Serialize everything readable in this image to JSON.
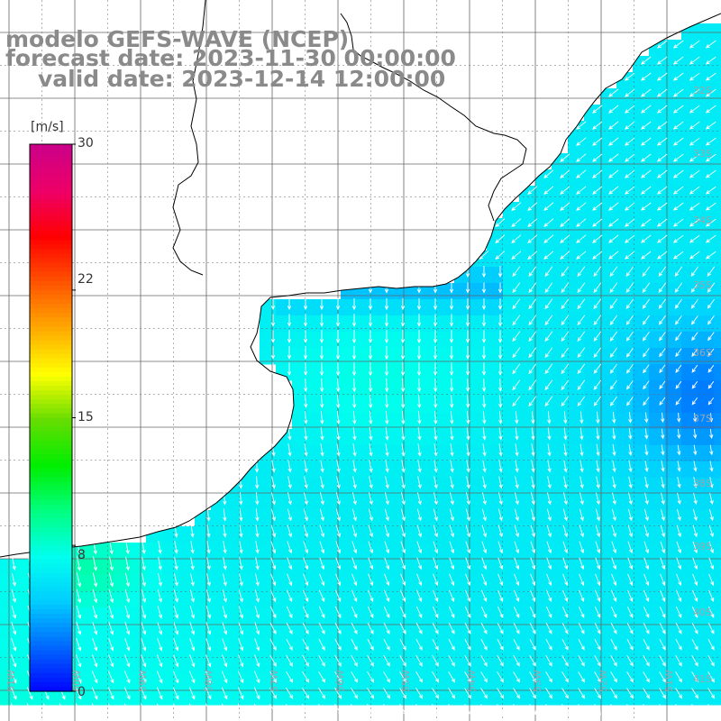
{
  "title": {
    "line1": "modelo GEFS-WAVE (NCEP)",
    "line2": "forecast date: 2023-11-30 00:00:00",
    "line3": "valid date: 2023-12-14 12:00:00"
  },
  "colorbar": {
    "unit": "[m/s]",
    "ticks": [
      "30",
      "22",
      "15",
      "8",
      "0"
    ],
    "tick_values": [
      30,
      22,
      15,
      8,
      0
    ],
    "min": 0,
    "max": 30,
    "colors": [
      "#0000ff",
      "#0066ff",
      "#00ccff",
      "#00ffee",
      "#00ff80",
      "#00ee00",
      "#66dd00",
      "#ffff00",
      "#ffaa00",
      "#ff5500",
      "#ff0000",
      "#ee0066",
      "#cc0088"
    ]
  },
  "map": {
    "lat_labels": [
      "32S",
      "33S",
      "34S",
      "35S",
      "36S",
      "37S",
      "38S",
      "39S",
      "40S",
      "41S"
    ],
    "lon_labels": [
      "61W",
      "60W",
      "59W",
      "58W",
      "57W",
      "56W",
      "55W",
      "54W",
      "53W",
      "52W",
      "51W"
    ],
    "lon_range": [
      -61.5,
      -50.5
    ],
    "lat_range": [
      -31.5,
      -42.5
    ],
    "grid": true,
    "coastline_color": "#000000",
    "grid_color": "#666666",
    "arrow_color": "#ffffff",
    "land_color": "#ffffff"
  }
}
